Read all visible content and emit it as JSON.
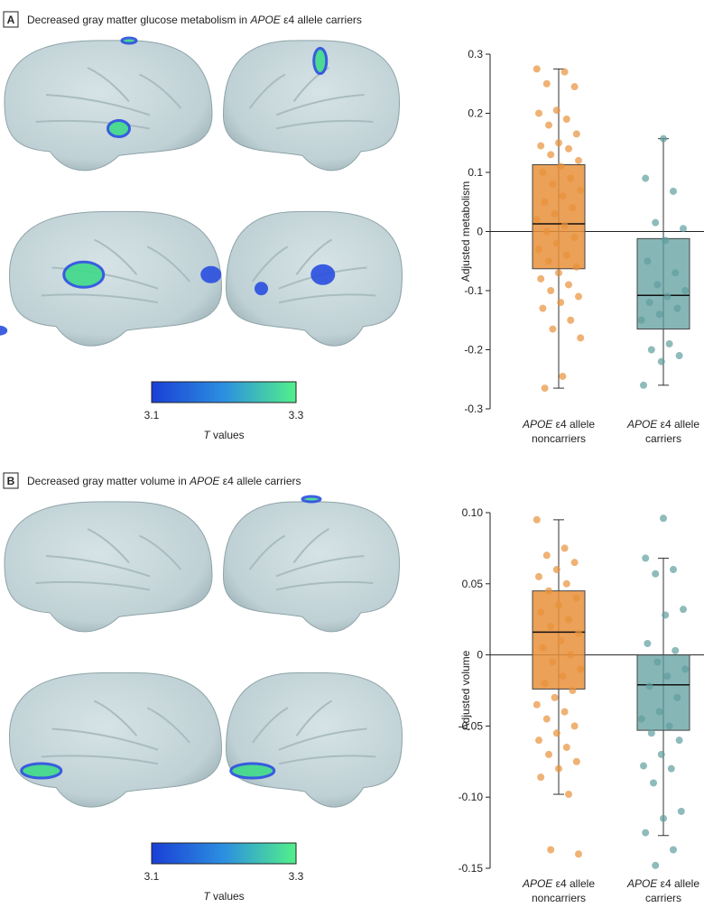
{
  "chart_data": [
    {
      "type": "box",
      "label": "A",
      "title": [
        "Decreased gray matter glucose metabolism in ",
        "APOE",
        " ε4 allele carriers"
      ],
      "ylabel": "Adjusted metabolism",
      "categories": [
        [
          "APOE",
          " ε4 allele",
          "noncarriers"
        ],
        [
          "APOE",
          " ε4 allele",
          "carriers"
        ]
      ],
      "ylim": [
        -0.3,
        0.3
      ],
      "yticks": [
        -0.3,
        -0.2,
        -0.1,
        0,
        0.1,
        0.2,
        0.3
      ],
      "boxes": [
        {
          "color": "#e8913a",
          "whisker_low": -0.265,
          "q1": -0.063,
          "median": 0.013,
          "q3": 0.113,
          "whisker_high": 0.275,
          "points": [
            0.275,
            0.27,
            0.25,
            0.245,
            0.205,
            0.2,
            0.19,
            0.18,
            0.165,
            0.15,
            0.145,
            0.14,
            0.13,
            0.12,
            0.11,
            0.1,
            0.09,
            0.08,
            0.07,
            0.06,
            0.05,
            0.04,
            0.03,
            0.02,
            0.01,
            0,
            -0.01,
            -0.02,
            -0.03,
            -0.04,
            -0.05,
            -0.06,
            -0.07,
            -0.08,
            -0.09,
            -0.1,
            -0.11,
            -0.12,
            -0.13,
            -0.15,
            -0.165,
            -0.18,
            -0.245,
            -0.265
          ]
        },
        {
          "color": "#5f9e9e",
          "whisker_low": -0.26,
          "q1": -0.165,
          "median": -0.108,
          "q3": -0.012,
          "whisker_high": 0.157,
          "points": [
            0.157,
            0.09,
            0.068,
            0.015,
            0.005,
            -0.015,
            -0.05,
            -0.07,
            -0.09,
            -0.1,
            -0.11,
            -0.12,
            -0.13,
            -0.14,
            -0.15,
            -0.19,
            -0.2,
            -0.21,
            -0.22,
            -0.26
          ]
        }
      ],
      "colorbar": {
        "range": [
          3.1,
          3.3
        ],
        "label": [
          "T",
          " values"
        ]
      }
    },
    {
      "type": "box",
      "label": "B",
      "title": [
        "Decreased gray matter volume in ",
        "APOE",
        " ε4 allele carriers"
      ],
      "ylabel": "Adjusted volume",
      "categories": [
        [
          "APOE",
          " ε4 allele",
          "noncarriers"
        ],
        [
          "APOE",
          " ε4 allele",
          "carriers"
        ]
      ],
      "ylim": [
        -0.15,
        0.1
      ],
      "yticks": [
        -0.15,
        {
          "value": -0.1,
          "label": "-0.10"
        },
        -0.05,
        0,
        0.05,
        {
          "value": 0.1,
          "label": "0.10"
        }
      ],
      "boxes": [
        {
          "color": "#e8913a",
          "whisker_low": -0.098,
          "q1": -0.024,
          "median": 0.016,
          "q3": 0.045,
          "whisker_high": 0.095,
          "points": [
            0.095,
            0.075,
            0.07,
            0.065,
            0.06,
            0.055,
            0.05,
            0.045,
            0.04,
            0.035,
            0.03,
            0.025,
            0.02,
            0.015,
            0.01,
            0.005,
            0,
            -0.005,
            -0.01,
            -0.015,
            -0.02,
            -0.025,
            -0.03,
            -0.035,
            -0.04,
            -0.045,
            -0.05,
            -0.055,
            -0.06,
            -0.065,
            -0.07,
            -0.075,
            -0.08,
            -0.086,
            -0.098,
            -0.137,
            -0.14
          ]
        },
        {
          "color": "#5f9e9e",
          "whisker_low": -0.127,
          "q1": -0.053,
          "median": -0.021,
          "q3": 0,
          "whisker_high": 0.068,
          "points": [
            0.096,
            0.068,
            0.06,
            0.057,
            0.032,
            0.028,
            0.008,
            0.003,
            -0.005,
            -0.01,
            -0.015,
            -0.022,
            -0.03,
            -0.04,
            -0.045,
            -0.05,
            -0.055,
            -0.06,
            -0.07,
            -0.078,
            -0.08,
            -0.09,
            -0.11,
            -0.115,
            -0.125,
            -0.137,
            -0.148
          ]
        }
      ],
      "colorbar": {
        "range": [
          3.1,
          3.3
        ],
        "label": [
          "T",
          " values"
        ]
      }
    }
  ]
}
